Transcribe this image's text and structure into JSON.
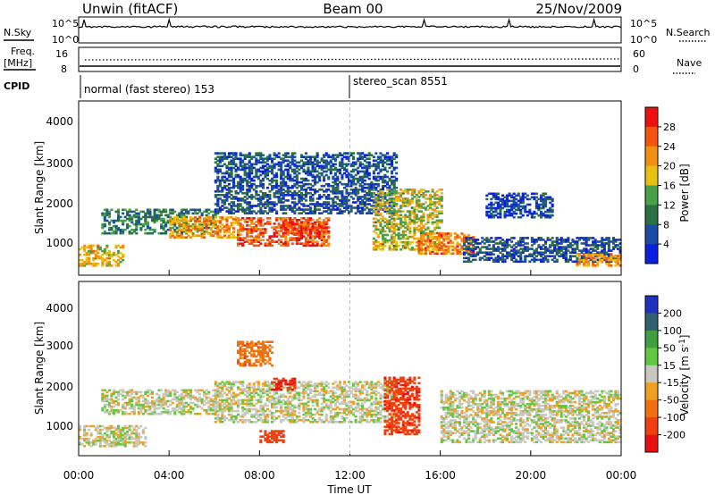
{
  "header": {
    "station": "Unwin (fitACF)",
    "beam": "Beam 00",
    "date": "25/Nov/2009"
  },
  "top_panels": {
    "nsky_label": "N.Sky",
    "nsky_ticks": [
      "10^5",
      "10^0"
    ],
    "nsearch_label": "N.Search",
    "freq_label_1": "Freq.",
    "freq_label_2": "[MHz]",
    "freq_ticks": [
      "16",
      "8"
    ],
    "nave_ticks": [
      "60",
      "0"
    ],
    "nave_label": "Nave",
    "cpid_label": "CPID",
    "cpid_segments": [
      {
        "text": "normal (fast stereo) 153"
      },
      {
        "text": "stereo_scan 8551"
      }
    ]
  },
  "x_axis": {
    "label": "Time UT",
    "ticks": [
      "00:00",
      "04:00",
      "08:00",
      "12:00",
      "16:00",
      "20:00",
      "00:00"
    ]
  },
  "power_panel": {
    "ylabel": "Slant Range [km]",
    "yticks": [
      "4000",
      "3000",
      "2000",
      "1000"
    ],
    "cbar_label": "Power [dB]",
    "cbar_ticks": [
      "28",
      "24",
      "20",
      "16",
      "12",
      "8",
      "4"
    ],
    "cbar_colors": [
      "#ee1010",
      "#f4540c",
      "#f49010",
      "#e8c010",
      "#48a048",
      "#2a7040",
      "#1a4ca8",
      "#0a20e0"
    ]
  },
  "velocity_panel": {
    "ylabel": "Slant Range [km]",
    "yticks": [
      "4000",
      "3000",
      "2000",
      "1000"
    ],
    "cbar_label": "Velocity [m s-1]",
    "cbar_ticks": [
      "200",
      "100",
      "50",
      "15",
      "-15",
      "-50",
      "-100",
      "-200"
    ],
    "cbar_colors": [
      "#2030c0",
      "#306070",
      "#40a040",
      "#60c840",
      "#c8c8c0",
      "#f0a020",
      "#f07010",
      "#f04010",
      "#e81010"
    ]
  },
  "chart_data": [
    {
      "type": "heatmap",
      "title": "Power",
      "xlabel": "Time UT",
      "ylabel": "Slant Range [km]",
      "xlim": [
        "00:00",
        "24:00"
      ],
      "ylim": [
        180,
        4500
      ],
      "colorbar": {
        "label": "Power [dB]",
        "range": [
          0,
          30
        ]
      },
      "echo_regions": [
        {
          "t": [
            0,
            2
          ],
          "r": [
            400,
            900
          ],
          "power": 18
        },
        {
          "t": [
            1,
            6
          ],
          "r": [
            1200,
            1800
          ],
          "power": 10
        },
        {
          "t": [
            4,
            7
          ],
          "r": [
            1100,
            1600
          ],
          "power": 20
        },
        {
          "t": [
            7,
            11
          ],
          "r": [
            900,
            1600
          ],
          "power": 24
        },
        {
          "t": [
            9,
            11
          ],
          "r": [
            1200,
            1500
          ],
          "power": 26
        },
        {
          "t": [
            6,
            14
          ],
          "r": [
            1700,
            3200
          ],
          "power": 6
        },
        {
          "t": [
            13,
            16
          ],
          "r": [
            800,
            2300
          ],
          "power": 16
        },
        {
          "t": [
            15,
            17.5
          ],
          "r": [
            700,
            1200
          ],
          "power": 22
        },
        {
          "t": [
            17,
            24
          ],
          "r": [
            500,
            1100
          ],
          "power": 6
        },
        {
          "t": [
            18,
            21
          ],
          "r": [
            1600,
            2200
          ],
          "power": 5
        },
        {
          "t": [
            22,
            24
          ],
          "r": [
            400,
            700
          ],
          "power": 20
        }
      ]
    },
    {
      "type": "heatmap",
      "title": "Velocity",
      "xlabel": "Time UT",
      "ylabel": "Slant Range [km]",
      "xlim": [
        "00:00",
        "24:00"
      ],
      "ylim": [
        180,
        4500
      ],
      "colorbar": {
        "label": "Velocity [m s-1]",
        "range": [
          -200,
          200
        ]
      },
      "echo_regions": [
        {
          "t": [
            0,
            3
          ],
          "r": [
            400,
            900
          ],
          "velocity": 0
        },
        {
          "t": [
            1,
            6
          ],
          "r": [
            1200,
            1800
          ],
          "velocity": 0
        },
        {
          "t": [
            6,
            14
          ],
          "r": [
            1000,
            2000
          ],
          "velocity": 0
        },
        {
          "t": [
            7,
            8.5
          ],
          "r": [
            2400,
            3000
          ],
          "velocity": -50
        },
        {
          "t": [
            8,
            9
          ],
          "r": [
            500,
            800
          ],
          "velocity": -120
        },
        {
          "t": [
            8.5,
            9.5
          ],
          "r": [
            1800,
            2100
          ],
          "velocity": -150
        },
        {
          "t": [
            13.5,
            15
          ],
          "r": [
            700,
            2100
          ],
          "velocity": -130
        },
        {
          "t": [
            16,
            24
          ],
          "r": [
            500,
            1800
          ],
          "velocity": 0
        }
      ]
    }
  ]
}
